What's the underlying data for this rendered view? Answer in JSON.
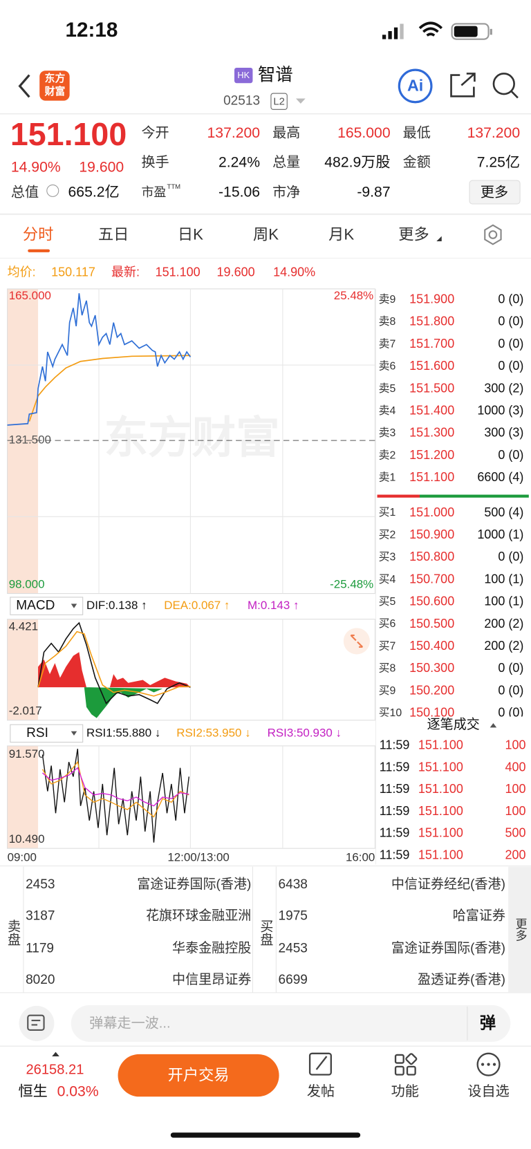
{
  "status_bar": {
    "time": "12:18"
  },
  "header": {
    "logo": [
      "东方",
      "财富"
    ],
    "market": "HK",
    "name": "智谱",
    "code": "02513",
    "level": "L2",
    "ai": "Ai"
  },
  "quote": {
    "price": "151.100",
    "change_pct": "14.90%",
    "change": "19.600",
    "stats": [
      [
        {
          "label": "今开",
          "value": "137.200"
        },
        {
          "label": "最高",
          "value": "165.000"
        },
        {
          "label": "最低",
          "value": "137.200"
        }
      ],
      [
        {
          "label": "换手",
          "value": "2.24%"
        },
        {
          "label": "总量",
          "value": "482.9万股"
        },
        {
          "label": "金额",
          "value": "7.25亿"
        }
      ],
      [
        {
          "label": "市盈",
          "sup": "TTM",
          "value": "-15.06"
        },
        {
          "label": "市净",
          "value": "-9.87"
        }
      ]
    ],
    "market_cap": {
      "label": "总值",
      "value": "665.2亿"
    },
    "more": "更多"
  },
  "tabs": [
    "分时",
    "五日",
    "日K",
    "周K",
    "月K",
    "更多"
  ],
  "intraday": {
    "avg_label": "均价:",
    "avg": "150.117",
    "last_label": "最新:",
    "last": "151.100",
    "change": "19.600",
    "change_pct": "14.90%",
    "y_top": "165.000",
    "pct_top": "25.48%",
    "y_mid": "131.500",
    "y_bottom": "98.000",
    "pct_bottom": "-25.48%",
    "watermark": "东方财富",
    "times": [
      "09:00",
      "12:00/13:00",
      "16:00"
    ]
  },
  "macd": {
    "name": "MACD",
    "dif": "DIF:0.138 ↑",
    "dea": "DEA:0.067 ↑",
    "m": "M:0.143 ↑",
    "max": "4.421",
    "min": "-2.017"
  },
  "rsi": {
    "name": "RSI",
    "rsi1": "RSI1:55.880 ↓",
    "rsi2": "RSI2:53.950 ↓",
    "rsi3": "RSI3:50.930 ↓",
    "max": "91.570",
    "min": "10.490"
  },
  "order_book": {
    "asks": [
      {
        "label": "卖9",
        "price": "151.900",
        "qty": "0 (0)"
      },
      {
        "label": "卖8",
        "price": "151.800",
        "qty": "0 (0)"
      },
      {
        "label": "卖7",
        "price": "151.700",
        "qty": "0 (0)"
      },
      {
        "label": "卖6",
        "price": "151.600",
        "qty": "0 (0)"
      },
      {
        "label": "卖5",
        "price": "151.500",
        "qty": "300 (2)"
      },
      {
        "label": "卖4",
        "price": "151.400",
        "qty": "1000 (3)"
      },
      {
        "label": "卖3",
        "price": "151.300",
        "qty": "300 (3)"
      },
      {
        "label": "卖2",
        "price": "151.200",
        "qty": "0 (0)"
      },
      {
        "label": "卖1",
        "price": "151.100",
        "qty": "6600 (4)"
      }
    ],
    "bids": [
      {
        "label": "买1",
        "price": "151.000",
        "qty": "500 (4)"
      },
      {
        "label": "买2",
        "price": "150.900",
        "qty": "1000 (1)"
      },
      {
        "label": "买3",
        "price": "150.800",
        "qty": "0 (0)"
      },
      {
        "label": "买4",
        "price": "150.700",
        "qty": "100 (1)"
      },
      {
        "label": "买5",
        "price": "150.600",
        "qty": "100 (1)"
      },
      {
        "label": "买6",
        "price": "150.500",
        "qty": "200 (2)"
      },
      {
        "label": "买7",
        "price": "150.400",
        "qty": "200 (2)"
      },
      {
        "label": "买8",
        "price": "150.300",
        "qty": "0 (0)"
      },
      {
        "label": "买9",
        "price": "150.200",
        "qty": "0 (0)"
      },
      {
        "label": "买10",
        "price": "150.100",
        "qty": "0 (0)"
      }
    ]
  },
  "trades": {
    "title": "逐笔成交",
    "rows": [
      {
        "time": "11:59",
        "price": "151.100",
        "volume": "100"
      },
      {
        "time": "11:59",
        "price": "151.100",
        "volume": "400"
      },
      {
        "time": "11:59",
        "price": "151.100",
        "volume": "100"
      },
      {
        "time": "11:59",
        "price": "151.100",
        "volume": "100"
      },
      {
        "time": "11:59",
        "price": "151.100",
        "volume": "500"
      },
      {
        "time": "11:59",
        "price": "151.100",
        "volume": "200"
      }
    ]
  },
  "brokers": {
    "sell_label": "卖盘",
    "sell": [
      {
        "code": "2453",
        "name": "富途证券国际(香港)"
      },
      {
        "code": "3187",
        "name": "花旗环球金融亚洲"
      },
      {
        "code": "1179",
        "name": "华泰金融控股"
      },
      {
        "code": "8020",
        "name": "中信里昂证券"
      }
    ],
    "buy_label": "买盘",
    "buy": [
      {
        "code": "6438",
        "name": "中信证券经纪(香港)"
      },
      {
        "code": "1975",
        "name": "哈富证券"
      },
      {
        "code": "2453",
        "name": "富途证券国际(香港)"
      },
      {
        "code": "6699",
        "name": "盈透证券(香港)"
      }
    ],
    "more": "更多"
  },
  "comment": {
    "placeholder": "弹幕走一波...",
    "button": "弹"
  },
  "footer": {
    "index_value": "26158.21",
    "index_name": "恒生",
    "index_change": "0.03%",
    "trade_button": "开户交易",
    "actions": [
      "发帖",
      "功能",
      "设自选"
    ]
  }
}
